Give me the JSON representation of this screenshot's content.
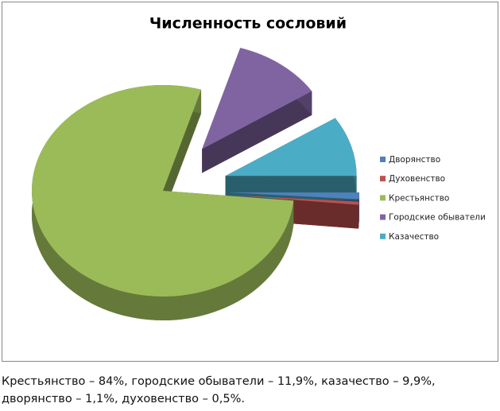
{
  "chart_data": {
    "type": "pie",
    "title": "Численность сословий",
    "categories": [
      "Дворянство",
      "Духовенство",
      "Крестьянство",
      "Городские обыватели",
      "Казачество"
    ],
    "values": [
      1.1,
      0.5,
      84,
      11.9,
      9.9
    ],
    "colors": [
      "#4f81bd",
      "#c0504d",
      "#9bbb59",
      "#8064a2",
      "#4bacc6"
    ],
    "legend": "right"
  },
  "caption": [
    "Крестьянство – 84%, городские обыватели – 11,9%, казачество – 9,9%,",
    "дворянство – 1,1%, духовенство – 0,5%."
  ]
}
